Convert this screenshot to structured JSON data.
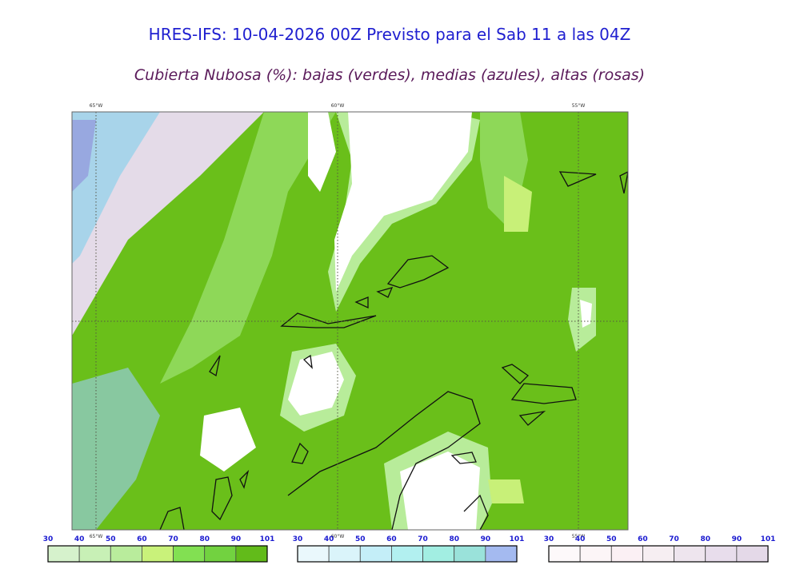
{
  "header": {
    "title": "HRES-IFS: 10-04-2026 00Z Previsto para el Sab 11 a las 04Z",
    "subtitle": "Cubierta Nubosa (%): bajas (verdes), medias (azules), altas (rosas)"
  },
  "map": {
    "lon_labels_top": [
      "65°W",
      "60°W",
      "55°W"
    ],
    "lon_labels_bottom": [
      "65°W",
      "60°W",
      "55°W"
    ]
  },
  "legends": [
    {
      "ticks": [
        30,
        40,
        50,
        60,
        70,
        80,
        90,
        101
      ],
      "colors": [
        "#d6f2cc",
        "#c8f0b6",
        "#b9ec9c",
        "#c9f27a",
        "#82e052",
        "#72d240",
        "#62bb1a"
      ]
    },
    {
      "ticks": [
        30,
        40,
        50,
        60,
        70,
        80,
        90,
        101
      ],
      "colors": [
        "#eaf8fc",
        "#daf4fa",
        "#c4eef8",
        "#b2f0f0",
        "#a2eee2",
        "#9ae2da",
        "#a4baf0"
      ]
    },
    {
      "ticks": [
        30,
        40,
        50,
        60,
        70,
        80,
        90,
        101
      ],
      "colors": [
        "#fdf9fa",
        "#fcf5f7",
        "#fbf0f4",
        "#f6eef2",
        "#eee5ee",
        "#e8ddec",
        "#e4d9e8"
      ]
    }
  ]
}
